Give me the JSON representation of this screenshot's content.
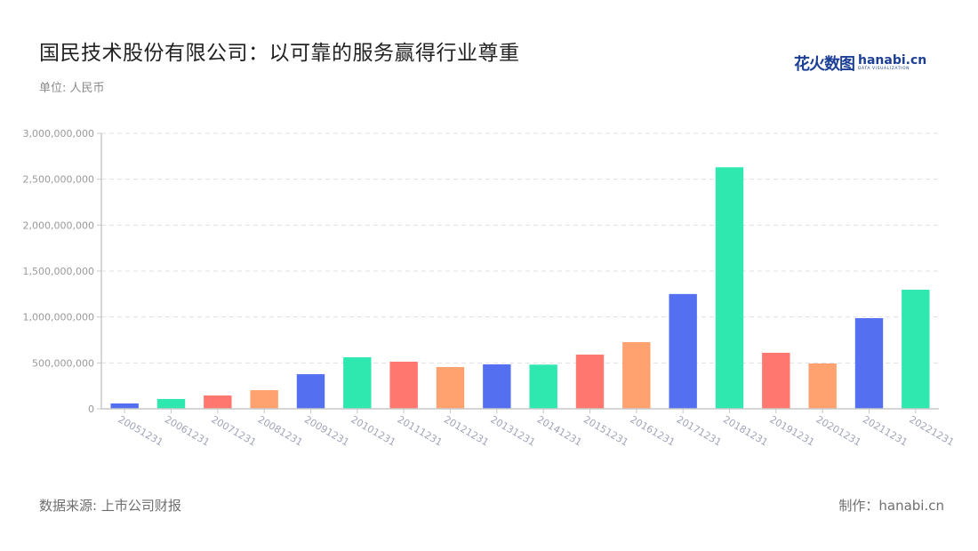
{
  "header": {
    "title": "国民技术股份有限公司：以可靠的服务赢得行业尊重",
    "unit": "单位: 人民币",
    "logo_cn": "花火数图",
    "logo_en": "hanabi.cn",
    "logo_tagline": "DATA VISUALIZATION"
  },
  "footer": {
    "source": "数据来源: 上市公司财报",
    "credit": "制作：hanabi.cn"
  },
  "colors": {
    "palette": [
      "#5470f0",
      "#2ee8b0",
      "#ff776f",
      "#ffa26f"
    ],
    "axis": "#c8c8c8",
    "grid": "#e0e0e0"
  },
  "chart_data": {
    "type": "bar",
    "title": "国民技术股份有限公司：以可靠的服务赢得行业尊重",
    "xlabel": "",
    "ylabel": "单位: 人民币",
    "ylim": [
      0,
      3000000000
    ],
    "yticks": [
      0,
      500000000,
      1000000000,
      1500000000,
      2000000000,
      2500000000,
      3000000000
    ],
    "ytick_labels": [
      "0",
      "500,000,000",
      "1,000,000,000",
      "1,500,000,000",
      "2,000,000,000",
      "2,500,000,000",
      "3,000,000,000"
    ],
    "grid": true,
    "legend": null,
    "categories": [
      "20051231",
      "20061231",
      "20071231",
      "20081231",
      "20091231",
      "20101231",
      "20111231",
      "20121231",
      "20131231",
      "20141231",
      "20151231",
      "20161231",
      "20171231",
      "20181231",
      "20191231",
      "20201231",
      "20211231",
      "20221231"
    ],
    "values": [
      58000000,
      107000000,
      145000000,
      203000000,
      377000000,
      561000000,
      513000000,
      455000000,
      484000000,
      481000000,
      590000000,
      726000000,
      1250000000,
      2630000000,
      610000000,
      494000000,
      987000000,
      1297000000
    ],
    "bar_colors": [
      "#5470f0",
      "#2ee8b0",
      "#ff776f",
      "#ffa26f",
      "#5470f0",
      "#2ee8b0",
      "#ff776f",
      "#ffa26f",
      "#5470f0",
      "#2ee8b0",
      "#ff776f",
      "#ffa26f",
      "#5470f0",
      "#2ee8b0",
      "#ff776f",
      "#ffa26f",
      "#5470f0",
      "#2ee8b0"
    ]
  }
}
